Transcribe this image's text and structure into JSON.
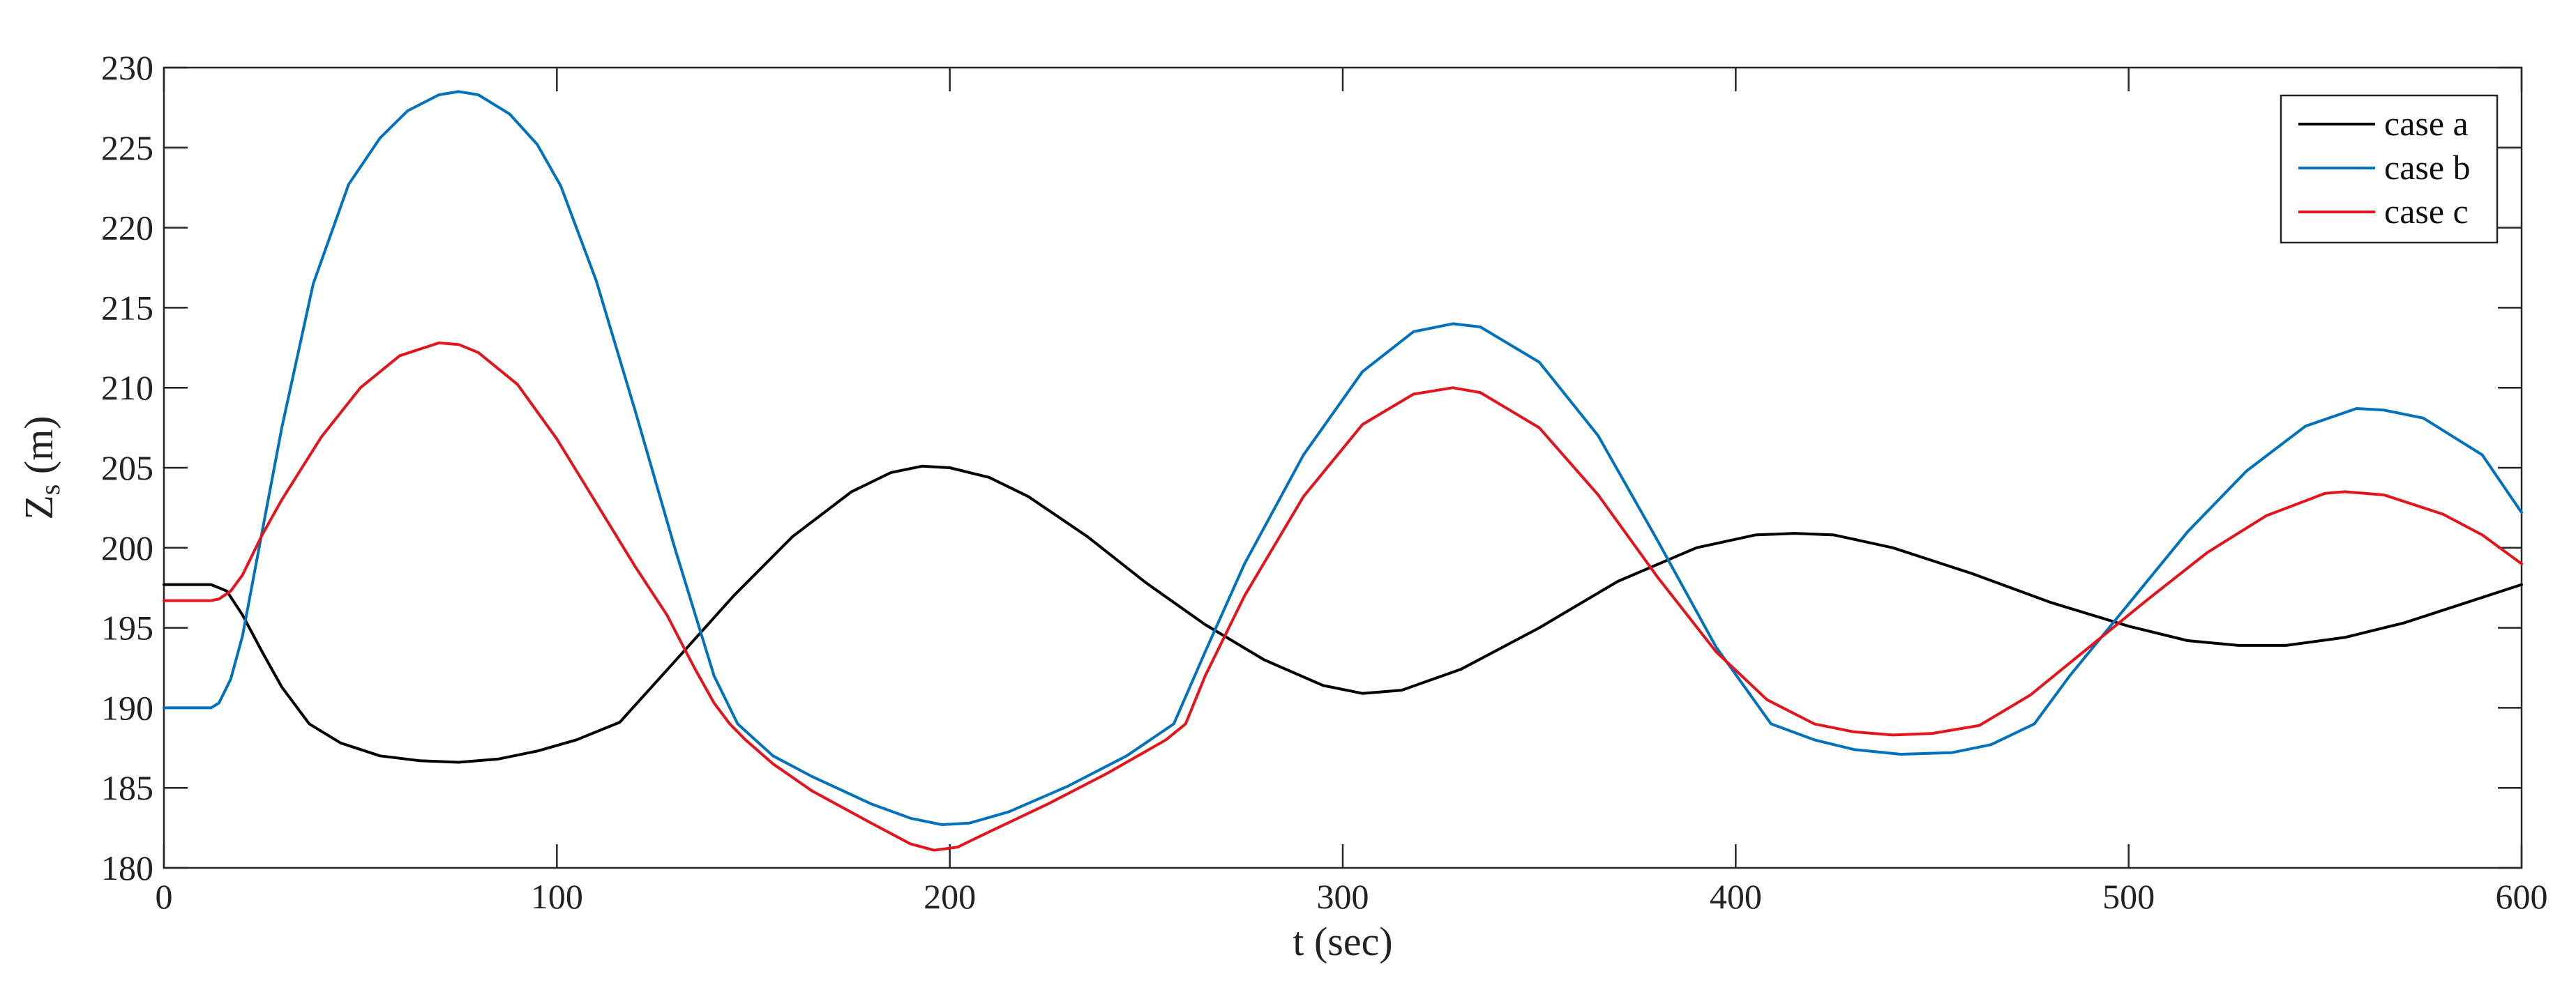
{
  "chart_data": {
    "type": "line",
    "xlabel": "t (sec)",
    "ylabel_main": "Z",
    "ylabel_sub": "s",
    "ylabel_unit": " (m)",
    "xlim": [
      0,
      600
    ],
    "ylim": [
      180,
      230
    ],
    "xticks": [
      0,
      100,
      200,
      300,
      400,
      500,
      600
    ],
    "yticks": [
      180,
      185,
      190,
      195,
      200,
      205,
      210,
      215,
      220,
      225,
      230
    ],
    "grid": false,
    "legend_position": "top-right",
    "series": [
      {
        "name": "case a",
        "color": "#000000",
        "x": [
          0,
          12,
          16,
          20,
          25,
          30,
          37,
          45,
          55,
          65,
          75,
          85,
          95,
          105,
          116,
          130,
          145,
          160,
          175,
          185,
          193,
          200,
          210,
          220,
          235,
          250,
          265,
          280,
          295,
          305,
          315,
          330,
          350,
          370,
          390,
          405,
          415,
          425,
          440,
          460,
          480,
          500,
          515,
          528,
          540,
          555,
          570,
          585,
          600
        ],
        "y": [
          197.7,
          197.7,
          197.3,
          195.8,
          193.5,
          191.3,
          189.0,
          187.8,
          187.0,
          186.7,
          186.6,
          186.8,
          187.3,
          188.0,
          189.1,
          192.9,
          197.0,
          200.7,
          203.5,
          204.7,
          205.1,
          205.0,
          204.4,
          203.2,
          200.7,
          197.8,
          195.2,
          193.0,
          191.4,
          190.9,
          191.1,
          192.4,
          195.0,
          197.9,
          200.0,
          200.8,
          200.9,
          200.8,
          200.0,
          198.4,
          196.6,
          195.1,
          194.2,
          193.9,
          193.9,
          194.4,
          195.3,
          196.5,
          197.7
        ]
      },
      {
        "name": "case b",
        "color": "#0072BD",
        "x": [
          0,
          12,
          14,
          17,
          20,
          25,
          30,
          38,
          47,
          55,
          62,
          70,
          75,
          80,
          88,
          95,
          101,
          110,
          120,
          130,
          140,
          146,
          155,
          165,
          180,
          190,
          198,
          205,
          215,
          230,
          245,
          257,
          265,
          275,
          290,
          305,
          318,
          328,
          335,
          350,
          365,
          380,
          395,
          409,
          420,
          430,
          442,
          455,
          465,
          476,
          485,
          500,
          515,
          530,
          545,
          558,
          565,
          575,
          590,
          600
        ],
        "y": [
          190.0,
          190.0,
          190.3,
          191.8,
          194.5,
          201.0,
          207.5,
          216.5,
          222.7,
          225.6,
          227.3,
          228.3,
          228.5,
          228.3,
          227.1,
          225.2,
          222.6,
          216.7,
          208.5,
          200.0,
          192.0,
          189.0,
          187.0,
          185.7,
          184.0,
          183.1,
          182.7,
          182.8,
          183.5,
          185.1,
          187.0,
          189.0,
          193.5,
          199.0,
          205.8,
          211.0,
          213.5,
          214.0,
          213.8,
          211.6,
          207.0,
          200.5,
          193.8,
          189.0,
          188.0,
          187.4,
          187.1,
          187.2,
          187.7,
          189.0,
          192.0,
          196.5,
          201.0,
          204.8,
          207.6,
          208.7,
          208.6,
          208.1,
          205.8,
          202.2
        ]
      },
      {
        "name": "case c",
        "color": "#E3141C",
        "x": [
          0,
          12,
          14,
          17,
          20,
          25,
          30,
          40,
          50,
          60,
          70,
          75,
          80,
          90,
          100,
          110,
          120,
          128,
          135,
          140,
          144,
          148,
          155,
          165,
          180,
          190,
          196,
          202,
          207,
          213,
          225,
          240,
          255,
          260,
          265,
          275,
          290,
          305,
          318,
          328,
          335,
          350,
          365,
          380,
          395,
          408,
          420,
          430,
          440,
          450,
          462,
          475,
          490,
          505,
          520,
          535,
          550,
          555,
          565,
          580,
          590,
          600
        ],
        "y": [
          196.7,
          196.7,
          196.8,
          197.3,
          198.3,
          200.8,
          203.0,
          206.9,
          210.0,
          212.0,
          212.8,
          212.7,
          212.2,
          210.2,
          206.8,
          202.8,
          198.8,
          195.8,
          192.5,
          190.3,
          189.0,
          188.0,
          186.5,
          184.8,
          182.8,
          181.5,
          181.1,
          181.3,
          181.9,
          182.6,
          184.0,
          185.9,
          188.0,
          189.0,
          192.0,
          197.0,
          203.2,
          207.7,
          209.6,
          210.0,
          209.7,
          207.5,
          203.3,
          198.2,
          193.5,
          190.5,
          189.0,
          188.5,
          188.3,
          188.4,
          188.9,
          190.8,
          193.8,
          196.8,
          199.7,
          202.0,
          203.4,
          203.5,
          203.3,
          202.1,
          200.8,
          199.0
        ]
      }
    ]
  }
}
